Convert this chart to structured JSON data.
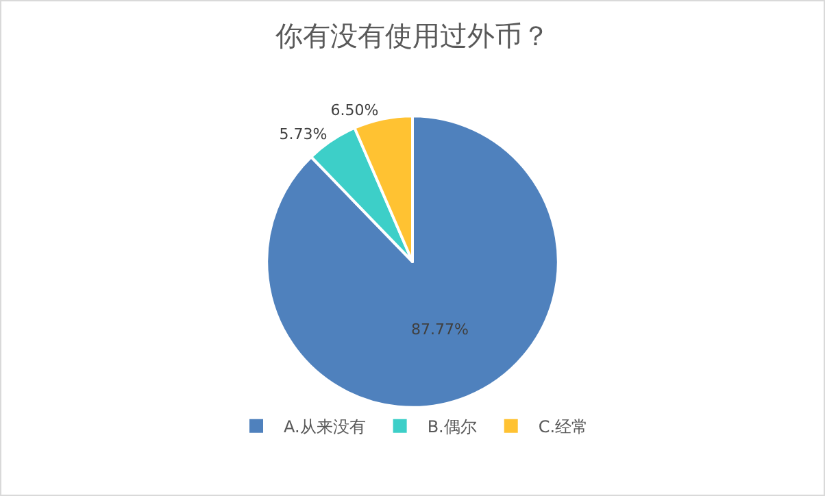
{
  "chart_data": {
    "type": "pie",
    "title": "你有没有使用过外币？",
    "categories": [
      "A.从来没有",
      "B.偶尔",
      "C.经常"
    ],
    "values": [
      87.77,
      5.73,
      6.5
    ],
    "value_labels": [
      "87.77%",
      "5.73%",
      "6.50%"
    ],
    "colors": [
      "#4f81bd",
      "#3dcfc8",
      "#ffc232"
    ],
    "legend": "bottom"
  }
}
